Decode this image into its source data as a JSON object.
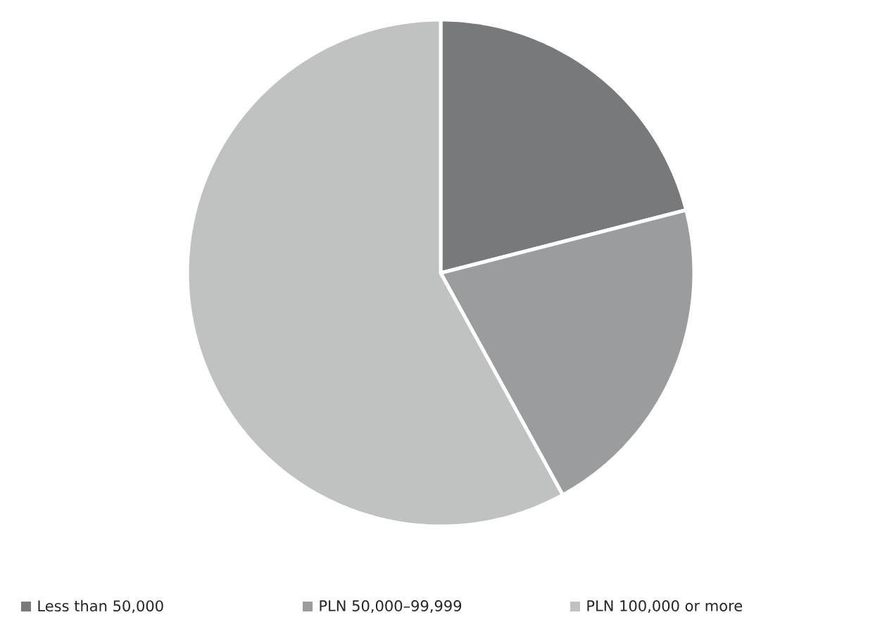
{
  "chart_data": {
    "type": "pie",
    "categories": [
      "Less than 50,000",
      "PLN 50,000–99,999",
      "PLN 100,000 or more"
    ],
    "values": [
      21,
      21,
      58
    ],
    "colors": [
      "#77797b",
      "#9a9c9d",
      "#c0c1c1"
    ],
    "legend": "bottom"
  }
}
